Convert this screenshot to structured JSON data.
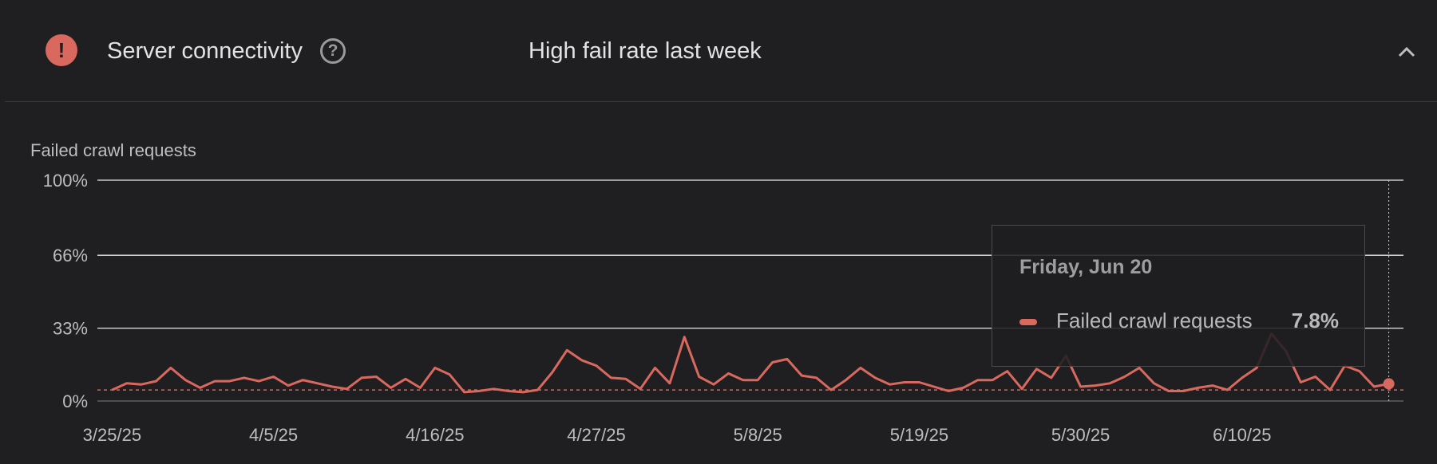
{
  "header": {
    "title": "Server connectivity",
    "status_icon": "error-icon",
    "help_icon": "help-icon",
    "summary": "High fail rate last week",
    "collapse_icon": "chevron-up-icon",
    "status_color": "#d9685e"
  },
  "chart_data": {
    "type": "line",
    "ylabel": "Failed crawl requests",
    "y_ticks": [
      "100%",
      "66%",
      "33%",
      "0%"
    ],
    "y_tick_values": [
      100,
      66,
      33,
      0
    ],
    "ylim": [
      0,
      100
    ],
    "x_tick_labels": [
      "3/25/25",
      "4/5/25",
      "4/16/25",
      "4/27/25",
      "5/8/25",
      "5/19/25",
      "5/30/25",
      "6/10/25"
    ],
    "x_tick_dates": [
      "2025-03-25",
      "2025-04-05",
      "2025-04-16",
      "2025-04-27",
      "2025-05-08",
      "2025-05-19",
      "2025-05-30",
      "2025-06-10"
    ],
    "x_range": [
      "2025-03-24",
      "2025-06-21"
    ],
    "threshold_value": 5,
    "series": [
      {
        "name": "Failed crawl requests",
        "color": "#d9685e",
        "x": [
          "2025-03-25",
          "2025-03-26",
          "2025-03-27",
          "2025-03-28",
          "2025-03-29",
          "2025-03-30",
          "2025-03-31",
          "2025-04-01",
          "2025-04-02",
          "2025-04-03",
          "2025-04-04",
          "2025-04-05",
          "2025-04-06",
          "2025-04-07",
          "2025-04-08",
          "2025-04-09",
          "2025-04-10",
          "2025-04-11",
          "2025-04-12",
          "2025-04-13",
          "2025-04-14",
          "2025-04-15",
          "2025-04-16",
          "2025-04-17",
          "2025-04-18",
          "2025-04-19",
          "2025-04-20",
          "2025-04-21",
          "2025-04-22",
          "2025-04-23",
          "2025-04-24",
          "2025-04-25",
          "2025-04-26",
          "2025-04-27",
          "2025-04-28",
          "2025-04-29",
          "2025-04-30",
          "2025-05-01",
          "2025-05-02",
          "2025-05-03",
          "2025-05-04",
          "2025-05-05",
          "2025-05-06",
          "2025-05-07",
          "2025-05-08",
          "2025-05-09",
          "2025-05-10",
          "2025-05-11",
          "2025-05-12",
          "2025-05-13",
          "2025-05-14",
          "2025-05-15",
          "2025-05-16",
          "2025-05-17",
          "2025-05-18",
          "2025-05-19",
          "2025-05-20",
          "2025-05-21",
          "2025-05-22",
          "2025-05-23",
          "2025-05-24",
          "2025-05-25",
          "2025-05-26",
          "2025-05-27",
          "2025-05-28",
          "2025-05-29",
          "2025-05-30",
          "2025-05-31",
          "2025-06-01",
          "2025-06-02",
          "2025-06-03",
          "2025-06-04",
          "2025-06-05",
          "2025-06-06",
          "2025-06-07",
          "2025-06-08",
          "2025-06-09",
          "2025-06-10",
          "2025-06-11",
          "2025-06-12",
          "2025-06-13",
          "2025-06-14",
          "2025-06-15",
          "2025-06-16",
          "2025-06-17",
          "2025-06-18",
          "2025-06-19",
          "2025-06-20"
        ],
        "values": [
          5,
          8,
          7.5,
          9,
          15,
          9.5,
          6,
          9,
          9,
          10.5,
          9,
          11,
          7,
          9.5,
          8,
          6.5,
          5.5,
          10.5,
          11,
          6,
          10,
          6,
          15,
          12,
          4,
          4.5,
          5.5,
          4.5,
          4,
          5,
          13,
          23,
          18.5,
          16,
          10.5,
          10,
          5.5,
          15,
          8,
          29,
          11,
          7.5,
          12.5,
          9.5,
          9.5,
          17.5,
          19,
          11.5,
          10.5,
          5,
          9.5,
          15,
          10.5,
          7.5,
          8.5,
          8.5,
          6.5,
          4.5,
          6,
          9.5,
          9.5,
          13.5,
          5.5,
          14.5,
          10.5,
          20.5,
          6.5,
          7,
          8,
          11,
          15,
          8,
          4.5,
          4.5,
          6,
          7,
          5,
          10.5,
          15,
          30.5,
          22.5,
          8.5,
          11,
          5,
          16,
          13.5,
          6.5,
          7.8
        ]
      }
    ]
  },
  "tooltip": {
    "date": "Friday, Jun 20",
    "series_label": "Failed crawl requests",
    "value": "7.8%"
  }
}
